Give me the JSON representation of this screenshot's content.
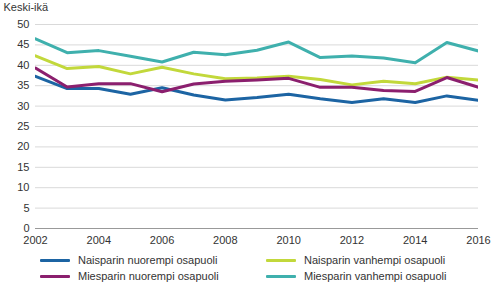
{
  "chart_data": {
    "type": "line",
    "y_label": "Keski-ikä",
    "x": [
      2002,
      2003,
      2004,
      2005,
      2006,
      2007,
      2008,
      2009,
      2010,
      2011,
      2012,
      2013,
      2014,
      2015,
      2016
    ],
    "xlim": [
      2002,
      2016
    ],
    "xticks": [
      2002,
      2004,
      2006,
      2008,
      2010,
      2012,
      2014,
      2016
    ],
    "ylim": [
      0,
      50
    ],
    "yticks": [
      0,
      5,
      10,
      15,
      20,
      25,
      30,
      35,
      40,
      45,
      50
    ],
    "grid": true,
    "legend": "bottom",
    "series": [
      {
        "name": "Naisparin nuorempi osapuoli",
        "color": "#1c64a3",
        "values": [
          37.3,
          34.3,
          34.3,
          32.9,
          34.5,
          32.7,
          31.5,
          32.1,
          32.9,
          31.8,
          30.9,
          31.8,
          30.9,
          32.5,
          31.4
        ]
      },
      {
        "name": "Naisparin vanhempi osapuoli",
        "color": "#c2d83b",
        "values": [
          42.3,
          39.2,
          39.7,
          37.9,
          39.5,
          37.9,
          36.7,
          36.9,
          37.3,
          36.5,
          35.2,
          36.1,
          35.5,
          37.1,
          36.4
        ]
      },
      {
        "name": "Miesparin nuorempi osapuoli",
        "color": "#8b1f6e",
        "values": [
          39.3,
          34.7,
          35.5,
          35.5,
          33.5,
          35.4,
          36.1,
          36.4,
          36.8,
          34.6,
          34.6,
          33.8,
          33.6,
          37.0,
          34.6
        ]
      },
      {
        "name": "Miesparin vanhempi osapuoli",
        "color": "#3fb0ad",
        "values": [
          46.5,
          43.1,
          43.6,
          42.2,
          40.8,
          43.2,
          42.6,
          43.7,
          45.7,
          41.9,
          42.3,
          41.8,
          40.6,
          45.6,
          43.5
        ]
      }
    ]
  }
}
